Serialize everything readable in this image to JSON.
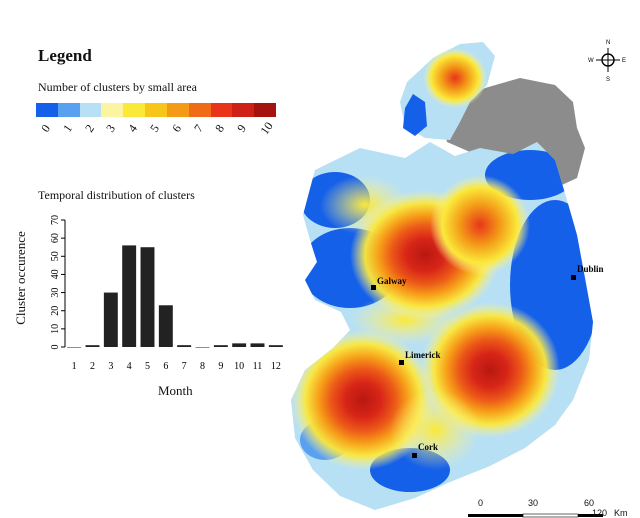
{
  "legend": {
    "title": "Legend",
    "subtitle": "Number of clusters by small area",
    "colors": [
      "#1560e8",
      "#5aa0f0",
      "#b7e0f4",
      "#fbf4a0",
      "#fbe93a",
      "#f8c51a",
      "#f39a17",
      "#ef6b17",
      "#e8351a",
      "#d01f17",
      "#a5130e"
    ],
    "ticks": [
      "0",
      "1",
      "2",
      "3",
      "4",
      "5",
      "6",
      "7",
      "8",
      "9",
      "10"
    ]
  },
  "chart_data": {
    "type": "bar",
    "title": "Temporal distribution of clusters",
    "xlabel": "Month",
    "ylabel": "Cluster occurence",
    "categories": [
      "1",
      "2",
      "3",
      "4",
      "5",
      "6",
      "7",
      "8",
      "9",
      "10",
      "11",
      "12"
    ],
    "values": [
      0,
      1,
      30,
      56,
      55,
      23,
      1,
      0,
      1,
      2,
      2,
      1
    ],
    "ylim": [
      0,
      70
    ],
    "yticks": [
      "0",
      "10",
      "20",
      "30",
      "40",
      "50",
      "60",
      "70"
    ],
    "bar_color": "#222222"
  },
  "map": {
    "cities": [
      "Galway",
      "Dublin",
      "Limerick",
      "Cork"
    ],
    "northern_ireland_color": "#8c8c8c",
    "scale_labels": [
      "0",
      "30",
      "60",
      "120"
    ],
    "scale_unit": "Km",
    "compass": [
      "N",
      "E",
      "S",
      "W"
    ]
  }
}
